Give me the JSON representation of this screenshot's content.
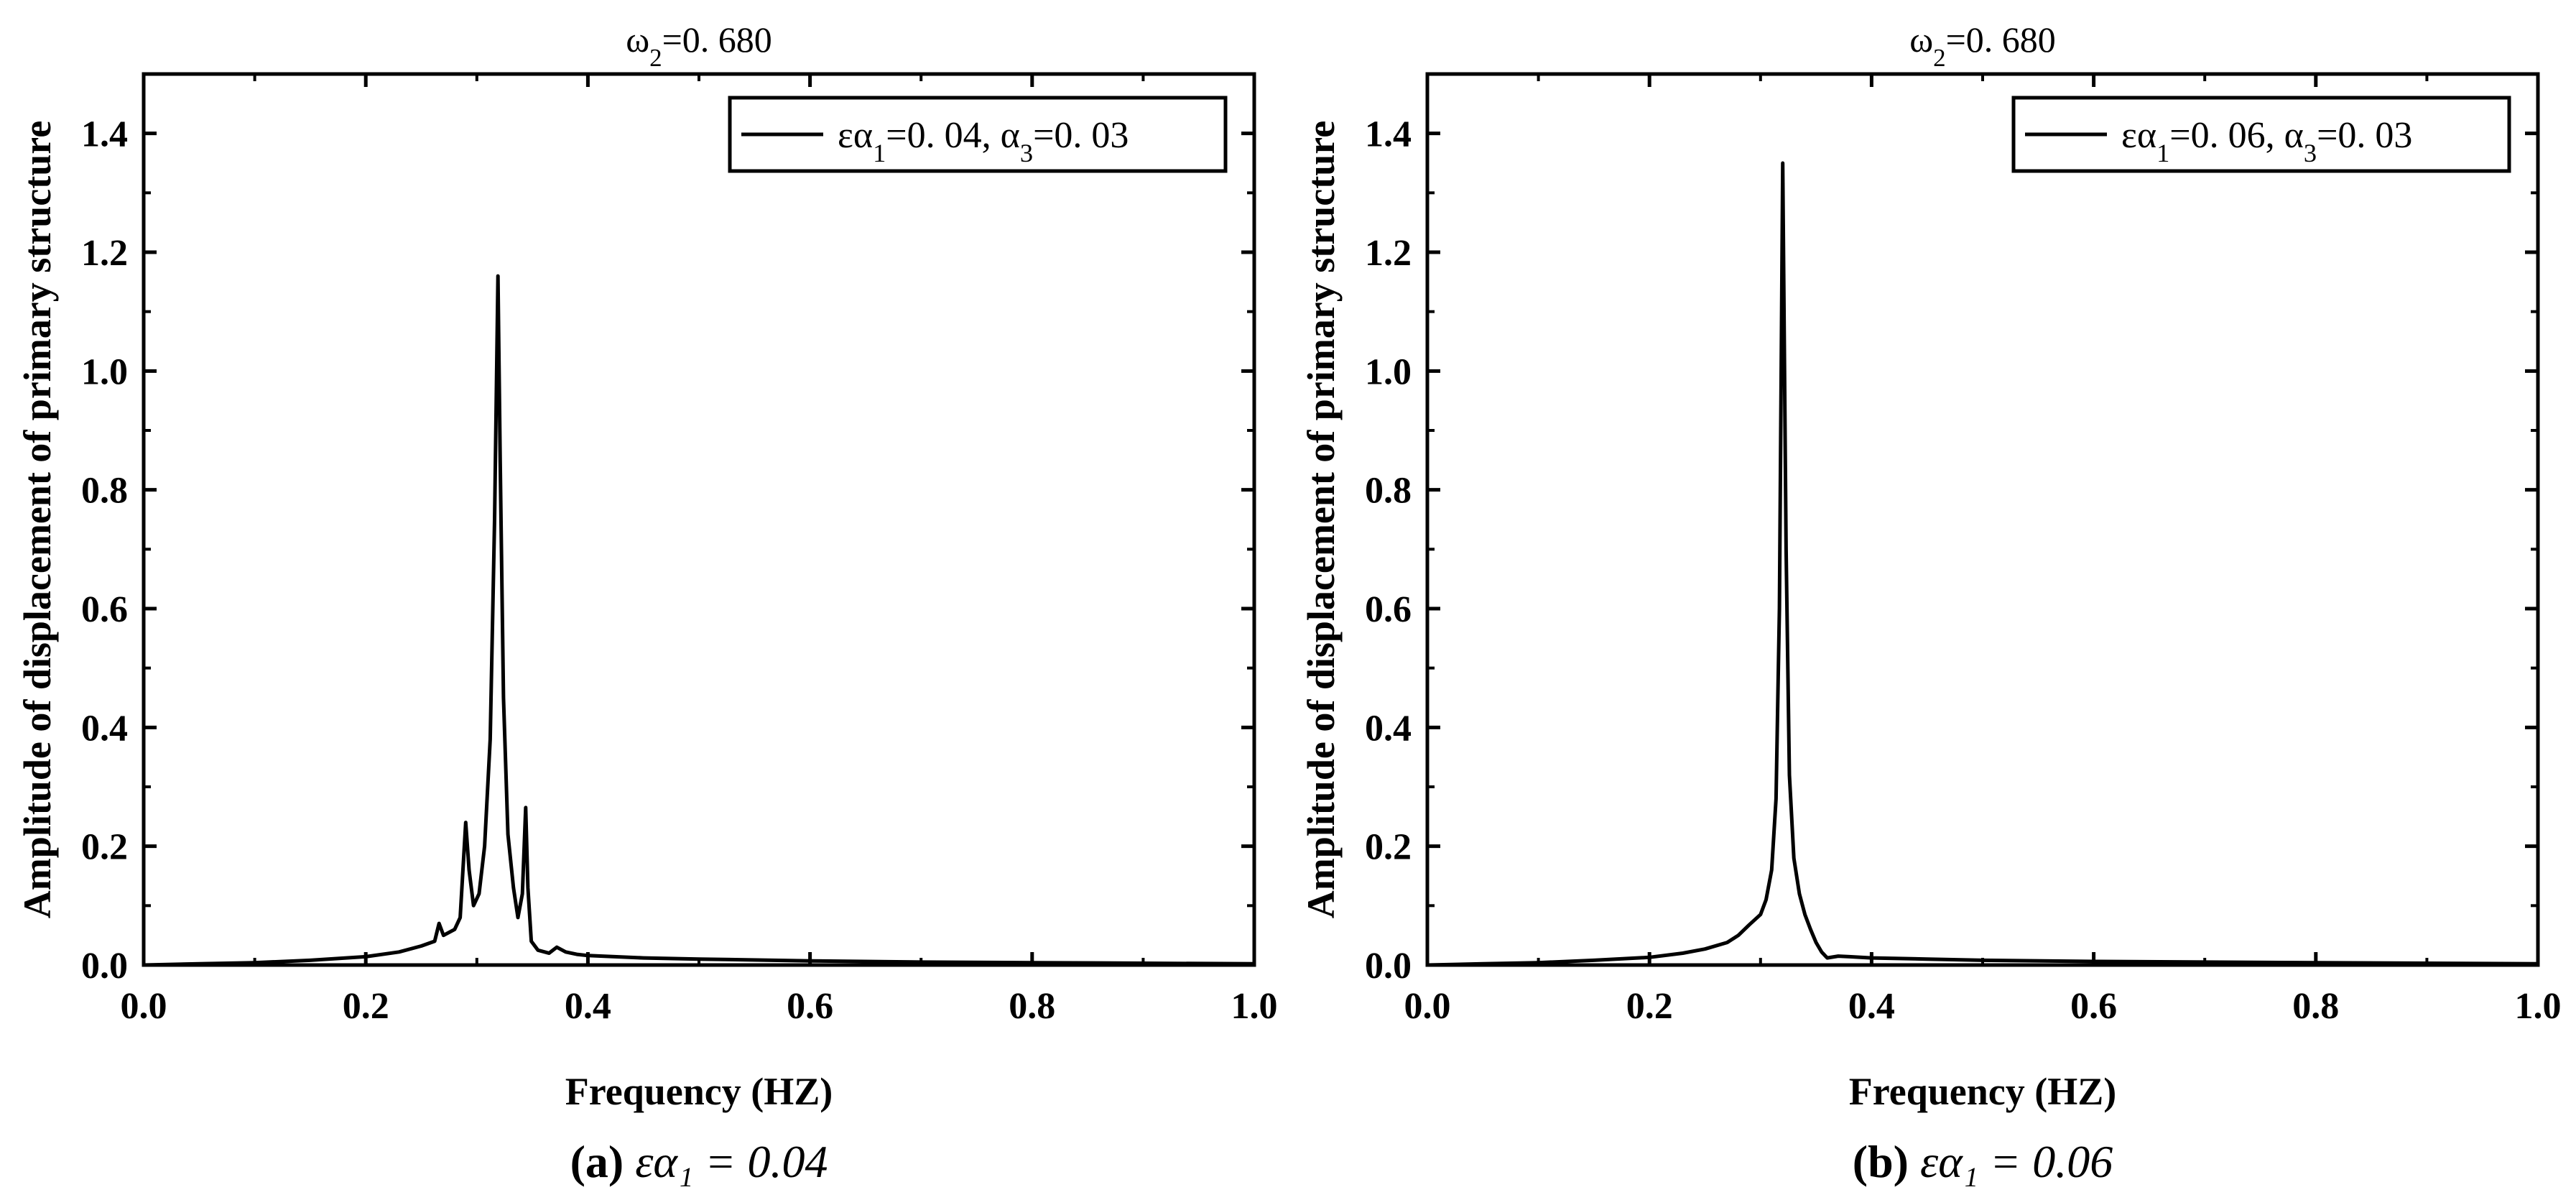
{
  "chart_data": [
    {
      "type": "line",
      "title": "ω₂=0. 680",
      "xlabel": "Frequency (HZ)",
      "ylabel": "Amplitude of displacement of primary structure",
      "xlim": [
        0.0,
        1.0
      ],
      "ylim": [
        0.0,
        1.5
      ],
      "x_ticks": [
        "0.0",
        "0.2",
        "0.4",
        "0.6",
        "0.8",
        "1.0"
      ],
      "y_ticks": [
        "0.0",
        "0.2",
        "0.4",
        "0.6",
        "0.8",
        "1.0",
        "1.2",
        "1.4"
      ],
      "legend_position": "top-right",
      "grid": false,
      "caption_letter": "(a)",
      "caption_text": "εα₁ = 0.04",
      "series": [
        {
          "name": "εα₁=0. 04, α₃=0. 03",
          "color": "#000000",
          "x": [
            0.0,
            0.05,
            0.1,
            0.15,
            0.2,
            0.23,
            0.25,
            0.262,
            0.266,
            0.27,
            0.28,
            0.285,
            0.29,
            0.293,
            0.297,
            0.302,
            0.307,
            0.312,
            0.316,
            0.319,
            0.321,
            0.324,
            0.328,
            0.333,
            0.337,
            0.341,
            0.344,
            0.346,
            0.349,
            0.355,
            0.365,
            0.372,
            0.38,
            0.39,
            0.4,
            0.45,
            0.5,
            0.6,
            0.7,
            0.8,
            0.9,
            1.0
          ],
          "y": [
            0.0,
            0.002,
            0.004,
            0.008,
            0.014,
            0.022,
            0.032,
            0.04,
            0.07,
            0.05,
            0.06,
            0.08,
            0.24,
            0.16,
            0.1,
            0.12,
            0.2,
            0.38,
            0.75,
            1.16,
            0.85,
            0.45,
            0.22,
            0.13,
            0.08,
            0.12,
            0.265,
            0.13,
            0.04,
            0.025,
            0.02,
            0.03,
            0.022,
            0.018,
            0.016,
            0.012,
            0.01,
            0.007,
            0.005,
            0.004,
            0.003,
            0.002
          ]
        }
      ]
    },
    {
      "type": "line",
      "title": "ω₂=0. 680",
      "xlabel": "Frequency (HZ)",
      "ylabel": "Amplitude of displacement of primary structure",
      "xlim": [
        0.0,
        1.0
      ],
      "ylim": [
        0.0,
        1.5
      ],
      "x_ticks": [
        "0.0",
        "0.2",
        "0.4",
        "0.6",
        "0.8",
        "1.0"
      ],
      "y_ticks": [
        "0.0",
        "0.2",
        "0.4",
        "0.6",
        "0.8",
        "1.0",
        "1.2",
        "1.4"
      ],
      "legend_position": "top-right",
      "grid": false,
      "caption_letter": "(b)",
      "caption_text": "εα₁ = 0.06",
      "series": [
        {
          "name": "εα₁=0. 06, α₃=0. 03",
          "color": "#000000",
          "x": [
            0.0,
            0.05,
            0.1,
            0.15,
            0.2,
            0.23,
            0.25,
            0.27,
            0.28,
            0.29,
            0.3,
            0.305,
            0.31,
            0.314,
            0.317,
            0.32,
            0.323,
            0.326,
            0.33,
            0.335,
            0.34,
            0.345,
            0.35,
            0.355,
            0.36,
            0.37,
            0.38,
            0.4,
            0.45,
            0.5,
            0.6,
            0.7,
            0.8,
            0.9,
            1.0
          ],
          "y": [
            0.0,
            0.002,
            0.004,
            0.008,
            0.013,
            0.02,
            0.027,
            0.038,
            0.05,
            0.068,
            0.085,
            0.11,
            0.16,
            0.28,
            0.6,
            1.35,
            0.7,
            0.32,
            0.18,
            0.12,
            0.085,
            0.06,
            0.038,
            0.022,
            0.012,
            0.015,
            0.014,
            0.012,
            0.01,
            0.008,
            0.006,
            0.005,
            0.004,
            0.003,
            0.002
          ]
        }
      ]
    }
  ]
}
